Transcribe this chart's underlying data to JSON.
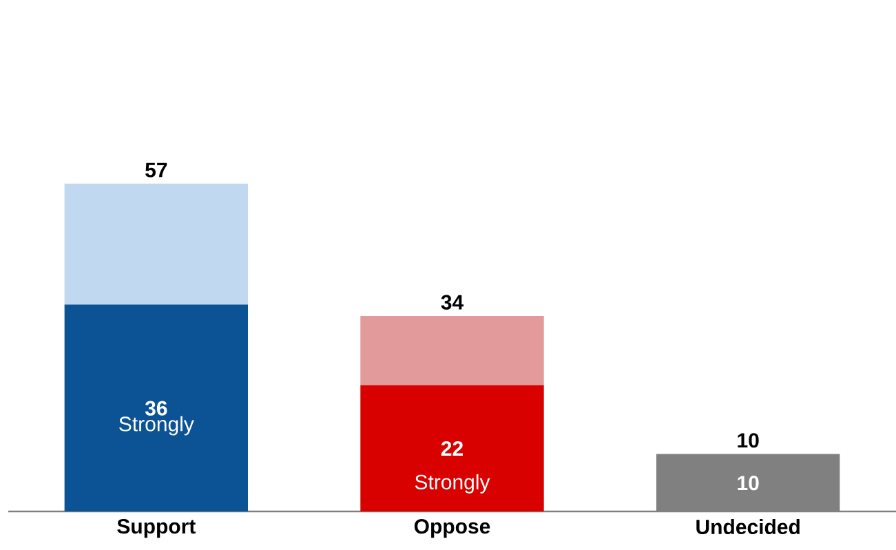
{
  "chart_data": {
    "type": "bar",
    "stacked": true,
    "categories": [
      "Support",
      "Oppose",
      "Undecided"
    ],
    "series": [
      {
        "colors": [
          "#0b5394",
          "#d90000",
          "#808080"
        ],
        "values": [
          36,
          22,
          10
        ],
        "value_labels": [
          "36",
          "22",
          "10"
        ]
      },
      {
        "colors": [
          "#c0d8f0",
          "#e39a9a",
          "#ffffff"
        ],
        "values": [
          21,
          12,
          0
        ]
      }
    ],
    "totals": [
      "57",
      "34",
      "10"
    ],
    "annotations": [
      "Strongly",
      "Strongly"
    ],
    "tick_labels": "x"
  }
}
